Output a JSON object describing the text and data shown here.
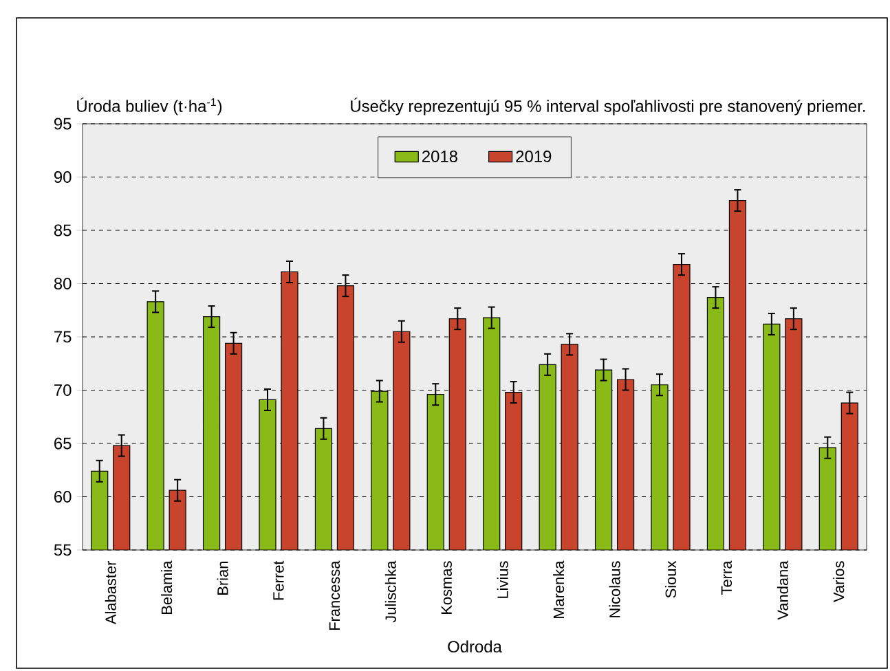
{
  "chart_data": {
    "type": "bar",
    "ylabel": "Úroda buliev (t·ha$^{-1}$)",
    "xlabel": "Odroda",
    "annotations": [
      "Úsečky reprezentujú 95 % interval spoľahlivosti pre stanovený priemer."
    ],
    "categories": [
      "Alabaster",
      "Belamia",
      "Brian",
      "Ferret",
      "Francessa",
      "Julischka",
      "Kosmas",
      "Livius",
      "Marenka",
      "Nicolaus",
      "Sioux",
      "Terra",
      "Vandana",
      "Varios"
    ],
    "series": [
      {
        "name": "2018",
        "color": "#8aba18",
        "values": [
          62.4,
          78.3,
          76.9,
          69.1,
          66.4,
          69.9,
          69.6,
          76.8,
          72.4,
          71.9,
          70.5,
          78.7,
          76.2,
          64.6
        ],
        "errors": [
          1.0,
          1.0,
          1.0,
          1.0,
          1.0,
          1.0,
          1.0,
          1.0,
          1.0,
          1.0,
          1.0,
          1.0,
          1.0,
          1.0
        ]
      },
      {
        "name": "2019",
        "color": "#c8442c",
        "values": [
          64.8,
          60.6,
          74.4,
          81.1,
          79.8,
          75.5,
          76.7,
          69.8,
          74.3,
          71.0,
          81.8,
          87.8,
          76.7,
          68.8
        ],
        "errors": [
          1.0,
          1.0,
          1.0,
          1.0,
          1.0,
          1.0,
          1.0,
          1.0,
          1.0,
          1.0,
          1.0,
          1.0,
          1.0,
          1.0
        ]
      }
    ],
    "ylim": [
      55,
      95
    ],
    "yticks": [
      55,
      60,
      65,
      70,
      75,
      80,
      85,
      90,
      95
    ],
    "grid": "y",
    "legend": "top"
  }
}
